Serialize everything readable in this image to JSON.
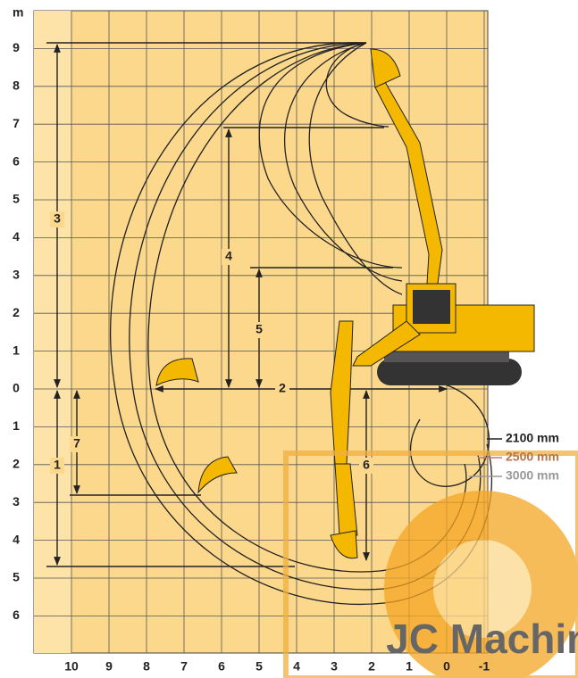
{
  "unit": "m",
  "y_labels": [
    "9",
    "8",
    "7",
    "6",
    "5",
    "4",
    "3",
    "2",
    "1",
    "0",
    "1",
    "2",
    "3",
    "4",
    "5",
    "6"
  ],
  "x_labels": [
    "10",
    "9",
    "8",
    "7",
    "6",
    "5",
    "4",
    "3",
    "2",
    "1",
    "0",
    "-1"
  ],
  "dimensions": [
    "1",
    "2",
    "3",
    "4",
    "5",
    "6",
    "7"
  ],
  "legend": [
    "2100 mm",
    "2500 mm",
    "3000 mm"
  ],
  "watermark": "JC Machine"
}
